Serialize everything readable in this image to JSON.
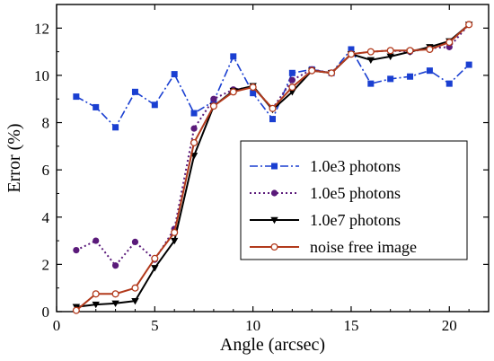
{
  "chart_data": {
    "type": "line",
    "xlabel": "Angle (arcsec)",
    "ylabel": "Error (%)",
    "xlim": [
      0,
      22
    ],
    "ylim": [
      0,
      13
    ],
    "xticks": [
      0,
      5,
      10,
      15,
      20
    ],
    "yticks": [
      0,
      2,
      4,
      6,
      8,
      10,
      12
    ],
    "grid": false,
    "legend_position": "right",
    "x": [
      1,
      2,
      3,
      4,
      5,
      6,
      7,
      8,
      9,
      10,
      11,
      12,
      13,
      14,
      15,
      16,
      17,
      18,
      19,
      20,
      21
    ],
    "series": [
      {
        "name": "1.0e3 photons",
        "color": "#1a3fd1",
        "line_style": "dash-dot",
        "marker": "square",
        "values": [
          9.1,
          8.65,
          7.8,
          9.3,
          8.75,
          10.05,
          8.4,
          8.9,
          10.8,
          9.25,
          8.15,
          10.1,
          10.25,
          10.1,
          11.1,
          9.65,
          9.85,
          9.95,
          10.2,
          9.65,
          10.45
        ]
      },
      {
        "name": "1.0e5 photons",
        "color": "#5a1a7a",
        "line_style": "dotted",
        "marker": "circle",
        "values": [
          2.6,
          3.0,
          1.95,
          2.95,
          2.2,
          3.5,
          7.75,
          9.0,
          9.4,
          9.5,
          8.6,
          9.8,
          10.25,
          10.1,
          10.9,
          11.0,
          11.05,
          11.0,
          11.15,
          11.2,
          12.15
        ]
      },
      {
        "name": "1.0e7 photons",
        "color": "#000000",
        "line_style": "solid",
        "marker": "triangle-down",
        "values": [
          0.2,
          0.3,
          0.35,
          0.45,
          1.85,
          3.0,
          6.6,
          8.7,
          9.35,
          9.55,
          8.55,
          9.3,
          10.2,
          10.1,
          10.9,
          10.65,
          10.8,
          11.0,
          11.2,
          11.45,
          12.15
        ]
      },
      {
        "name": "noise free image",
        "color": "#b23a1c",
        "line_style": "solid",
        "marker": "open-circle",
        "values": [
          0.05,
          0.75,
          0.75,
          1.0,
          2.25,
          3.35,
          7.15,
          8.7,
          9.3,
          9.5,
          8.6,
          9.5,
          10.2,
          10.1,
          10.9,
          11.0,
          11.05,
          11.05,
          11.1,
          11.4,
          12.15
        ]
      }
    ]
  }
}
